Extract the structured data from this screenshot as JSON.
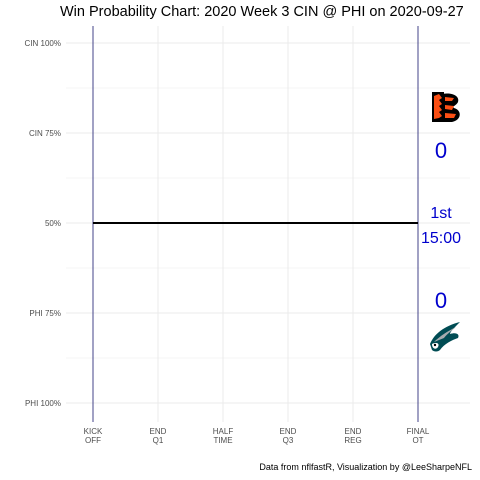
{
  "title": "Win Probability Chart: 2020 Week 3 CIN @ PHI on 2020-09-27",
  "caption": "Data from nflfastR, Visualization by @LeeSharpeNFL",
  "colors": {
    "background": "#ffffff",
    "grid": "#ebebeb",
    "line": "#000000",
    "boundary": "#191970",
    "score_text": "#0000cd",
    "cin_orange": "#fb4f14",
    "cin_black": "#000000",
    "phi_green": "#004c54",
    "phi_silver": "#a5acaf"
  },
  "chart_data": {
    "type": "line",
    "title": "Win Probability Chart: 2020 Week 3 CIN @ PHI on 2020-09-27",
    "xlabel": "",
    "ylabel": "",
    "grid": true,
    "x_ticks": [
      {
        "line1": "KICK",
        "line2": "OFF",
        "minute": 0
      },
      {
        "line1": "END",
        "line2": "Q1",
        "minute": 15
      },
      {
        "line1": "HALF",
        "line2": "TIME",
        "minute": 30
      },
      {
        "line1": "END",
        "line2": "Q3",
        "minute": 45
      },
      {
        "line1": "END",
        "line2": "REG",
        "minute": 60
      },
      {
        "line1": "FINAL",
        "line2": "OT",
        "minute": 75
      }
    ],
    "xlim": [
      0,
      75
    ],
    "y_ticks": [
      {
        "label": "CIN 100%",
        "value": 1.0
      },
      {
        "label": "CIN 75%",
        "value": 0.75
      },
      {
        "label": "50%",
        "value": 0.5
      },
      {
        "label": "PHI 75%",
        "value": 0.25
      },
      {
        "label": "PHI 100%",
        "value": 0.0
      }
    ],
    "ylim": [
      0,
      1
    ],
    "series": [
      {
        "x": [
          0,
          75
        ],
        "y": [
          0.5,
          0.5
        ]
      }
    ],
    "vlines": [
      0,
      75
    ]
  },
  "scoreboard": {
    "cin_score": "0",
    "period": "1st",
    "clock": "15:00",
    "phi_score": "0"
  },
  "logos": {
    "away": "bengals-logo-icon",
    "home": "eagles-logo-icon"
  }
}
